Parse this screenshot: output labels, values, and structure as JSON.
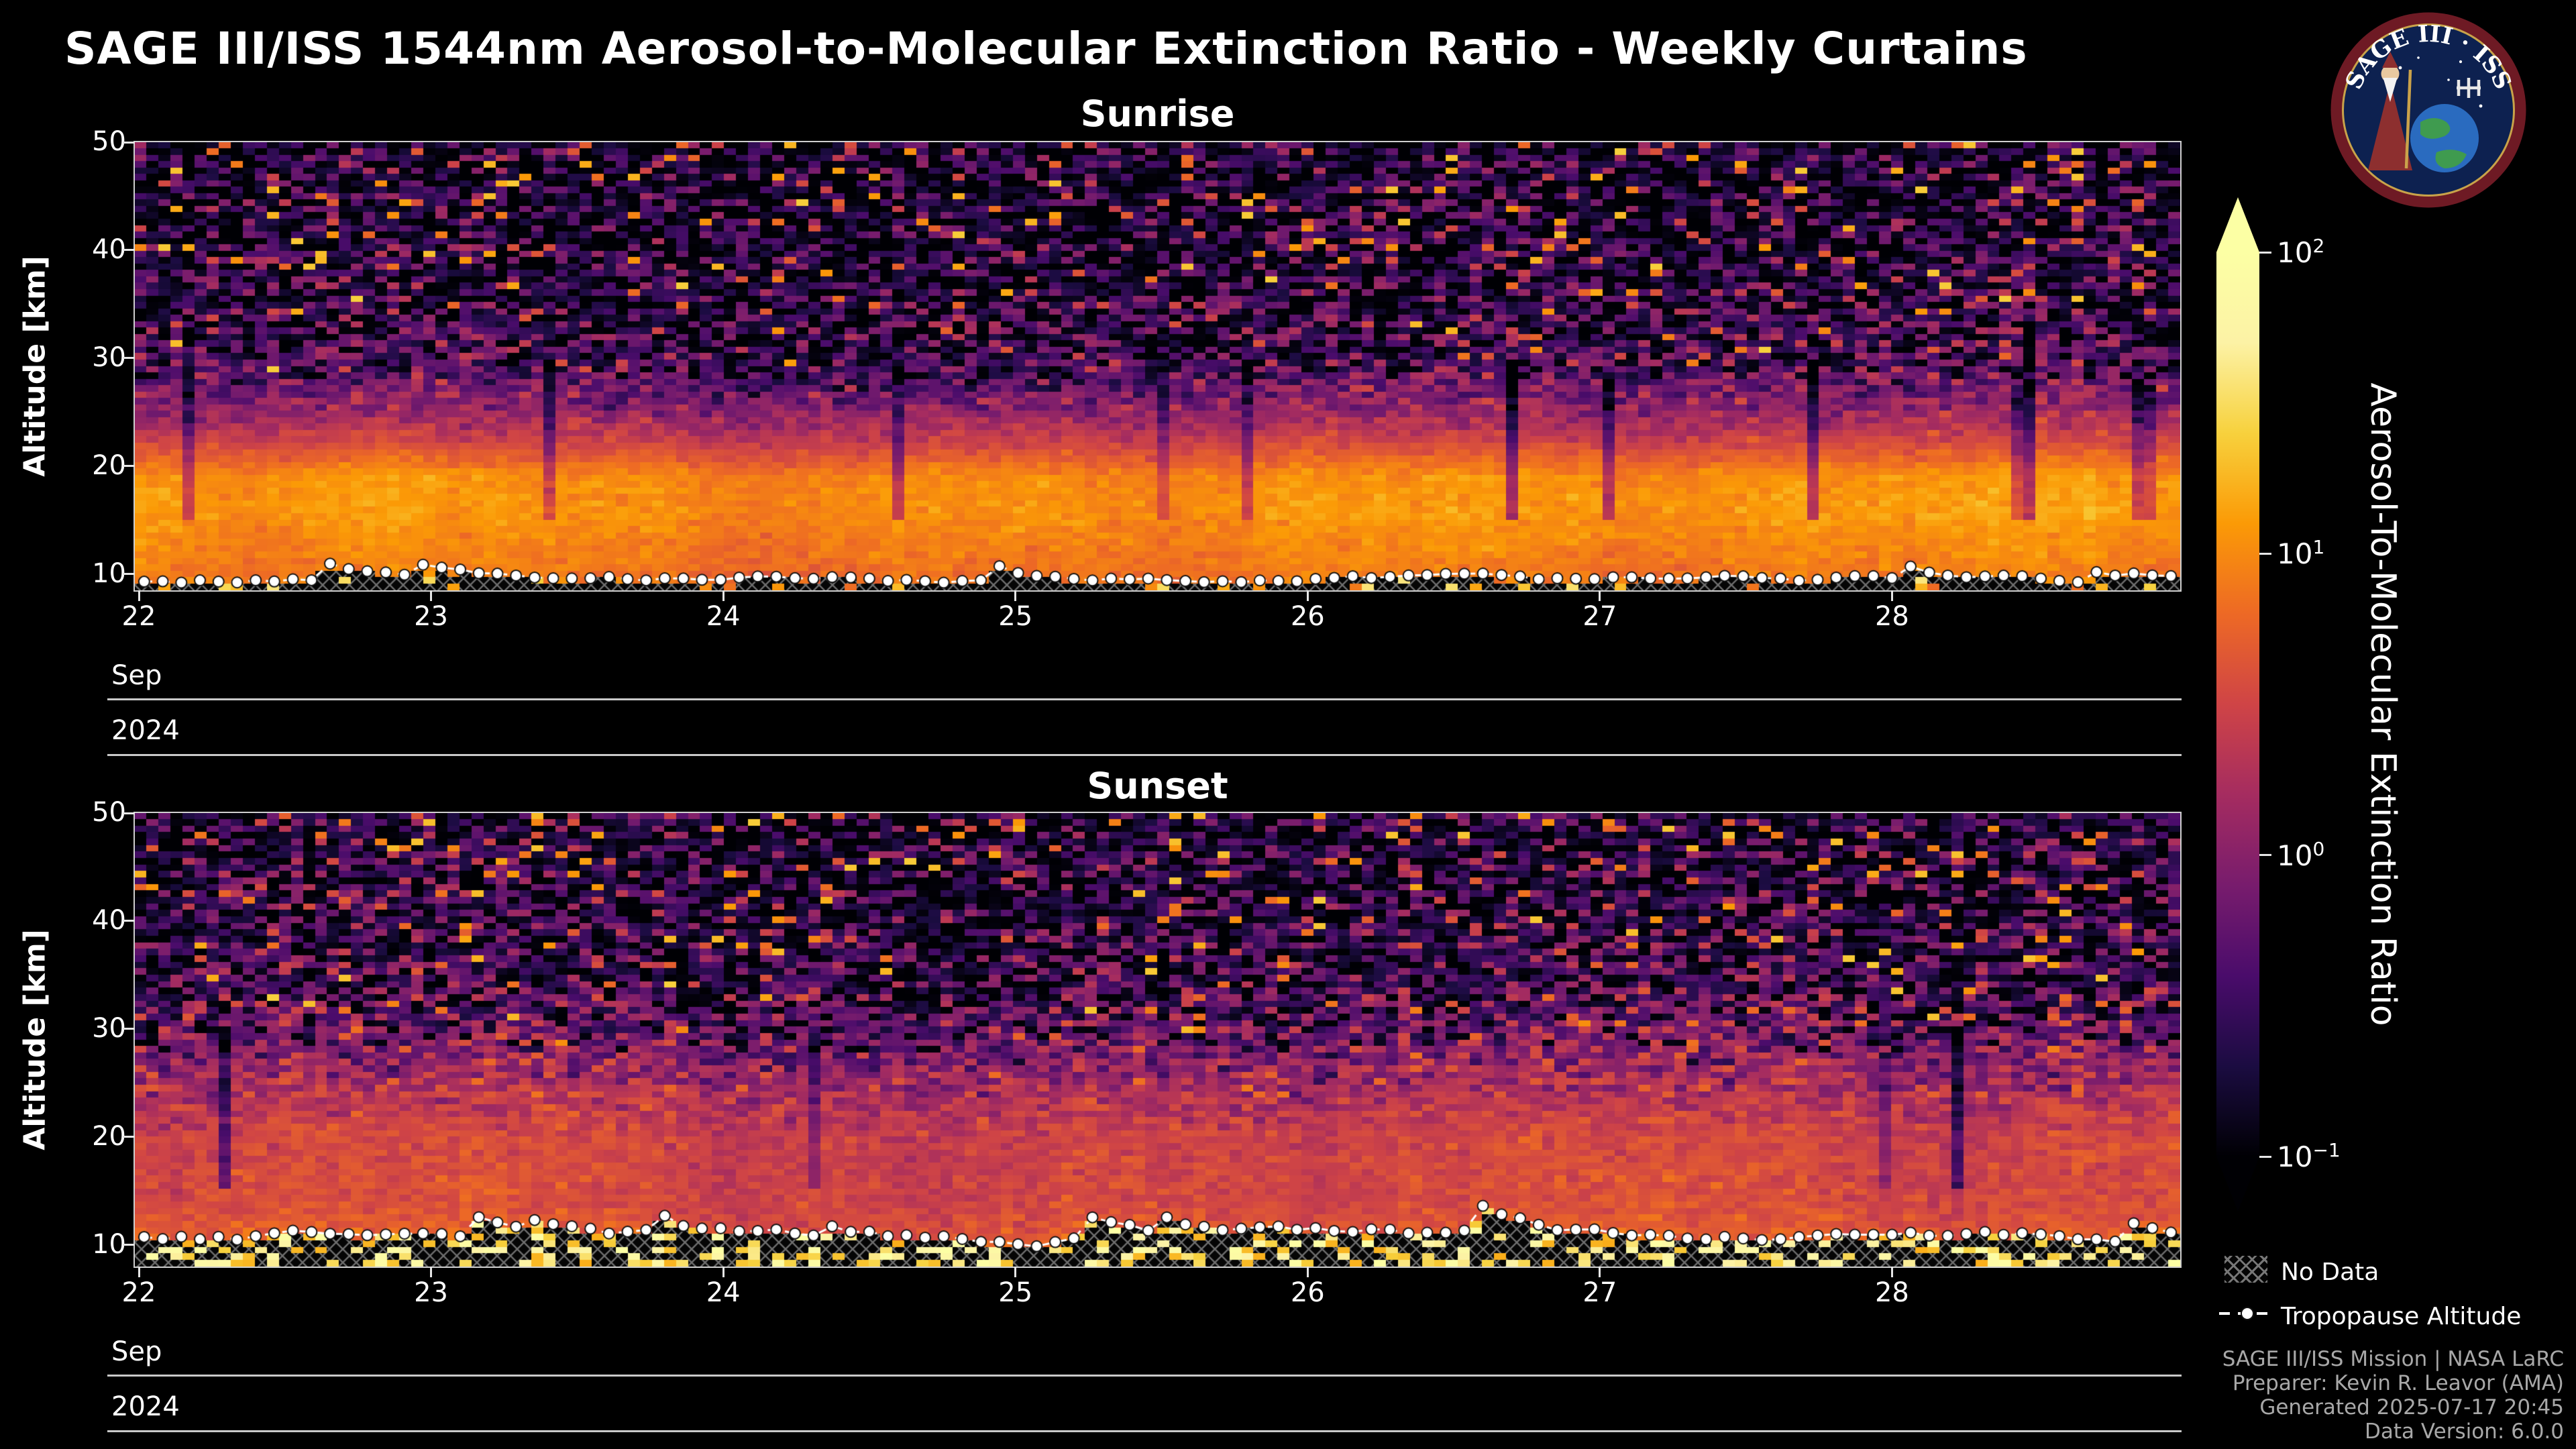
{
  "header": {
    "title": "SAGE III/ISS 1544nm Aerosol-to-Molecular Extinction Ratio - Weekly Curtains"
  },
  "logo": {
    "text": "SAGE III · ISS"
  },
  "panels": [
    {
      "title": "Sunrise",
      "ylabel": "Altitude [km]",
      "month": "Sep",
      "year": "2024"
    },
    {
      "title": "Sunset",
      "ylabel": "Altitude [km]",
      "month": "Sep",
      "year": "2024"
    }
  ],
  "colorbar": {
    "label": "Aerosol-To-Molecular Extinction Ratio",
    "tick_exponents": [
      2,
      1,
      0,
      -1
    ],
    "scale": "log10",
    "min": 0.1,
    "max": 100
  },
  "legend": {
    "no_data_label": "No Data",
    "tropopause_label": "Tropopause Altitude"
  },
  "attribution": {
    "lines": [
      "SAGE III/ISS Mission | NASA LaRC",
      "Preparer: Kevin R. Leavor (AMA)",
      "Generated 2025-07-17 20:45",
      "Data Version: 6.0.0"
    ]
  },
  "colormap_stops": [
    [
      0.0,
      "#000004"
    ],
    [
      0.1,
      "#1b0c41"
    ],
    [
      0.2,
      "#4a0c6b"
    ],
    [
      0.3,
      "#781c6d"
    ],
    [
      0.4,
      "#a52c60"
    ],
    [
      0.5,
      "#cf4446"
    ],
    [
      0.6,
      "#ed6925"
    ],
    [
      0.7,
      "#fb9a06"
    ],
    [
      0.8,
      "#f7d13d"
    ],
    [
      0.9,
      "#fcf2a5"
    ],
    [
      1.0,
      "#fcffa4"
    ]
  ],
  "chart_data": [
    {
      "type": "heatmap",
      "panel": "Sunrise",
      "x": {
        "tick_days": [
          22,
          23,
          24,
          25,
          26,
          27,
          28
        ],
        "month": "Sep",
        "year": "2024",
        "range_days": [
          22,
          29
        ]
      },
      "y": {
        "label": "Altitude [km]",
        "ticks": [
          10,
          20,
          30,
          40,
          50
        ],
        "range": [
          8.5,
          50
        ]
      },
      "color": {
        "scale": "log10",
        "min": 0.1,
        "max": 100,
        "colormap": "inferno"
      },
      "mean_profile": {
        "altitude_km": [
          8.5,
          10,
          13,
          16,
          19,
          22,
          25,
          28,
          32,
          40,
          50
        ],
        "log10_ratio": [
          1.0,
          0.9,
          1.0,
          1.1,
          1.05,
          0.55,
          0.1,
          -0.25,
          -0.5,
          -0.65,
          -0.7
        ],
        "extinction_ratio": [
          10.0,
          7.9,
          10.0,
          12.6,
          11.2,
          3.5,
          1.26,
          0.56,
          0.32,
          0.22,
          0.2
        ]
      },
      "tropopause_km": {
        "mean": 9.5,
        "min": 8.7,
        "max": 12.5
      },
      "no_data": "hatched cells below tropopause",
      "render": {
        "seed": 20240922,
        "cols": 170,
        "rows": 70,
        "noise": {
          "low_alt_sigma": 0.12,
          "high_alt_sigma": 0.8,
          "transition_alt": [
            22,
            32
          ]
        },
        "salt_p": 0.06,
        "pepper_p": 0.1,
        "streak_p": 0.05,
        "bottom_bright_p": 0.12,
        "bottom_bright_log10": [
          0.8,
          1.6
        ],
        "trop_markers": 110,
        "trop_walk": 0.5,
        "trop_spike_p": 0.05,
        "trop_spike_max": 2.5
      }
    },
    {
      "type": "heatmap",
      "panel": "Sunset",
      "x": {
        "tick_days": [
          22,
          23,
          24,
          25,
          26,
          27,
          28
        ],
        "month": "Sep",
        "year": "2024",
        "range_days": [
          22,
          29
        ]
      },
      "y": {
        "label": "Altitude [km]",
        "ticks": [
          10,
          20,
          30,
          40,
          50
        ],
        "range": [
          8,
          50
        ]
      },
      "color": {
        "scale": "log10",
        "min": 0.1,
        "max": 100,
        "colormap": "inferno"
      },
      "mean_profile": {
        "altitude_km": [
          8,
          9.5,
          11,
          14,
          17,
          20,
          24,
          27,
          30,
          34,
          40,
          50
        ],
        "log10_ratio": [
          1.3,
          0.95,
          0.7,
          0.55,
          0.55,
          0.5,
          0.3,
          0.05,
          -0.2,
          -0.45,
          -0.6,
          -0.65
        ],
        "extinction_ratio": [
          20.0,
          8.9,
          5.0,
          3.5,
          3.5,
          3.2,
          2.0,
          1.12,
          0.63,
          0.35,
          0.25,
          0.22
        ]
      },
      "tropopause_km": {
        "mean": 10.8,
        "min": 9.0,
        "max": 15.5
      },
      "no_data": "hatched cells below tropopause",
      "render": {
        "seed": 20240923,
        "cols": 170,
        "rows": 70,
        "noise": {
          "low_alt_sigma": 0.16,
          "high_alt_sigma": 0.8,
          "transition_alt": [
            20,
            32
          ]
        },
        "salt_p": 0.06,
        "pepper_p": 0.1,
        "streak_p": 0.04,
        "bottom_bright_p": 0.35,
        "bottom_bright_log10": [
          1.2,
          2.0
        ],
        "trop_markers": 110,
        "trop_walk": 0.7,
        "trop_spike_p": 0.08,
        "trop_spike_max": 4.0
      }
    }
  ]
}
